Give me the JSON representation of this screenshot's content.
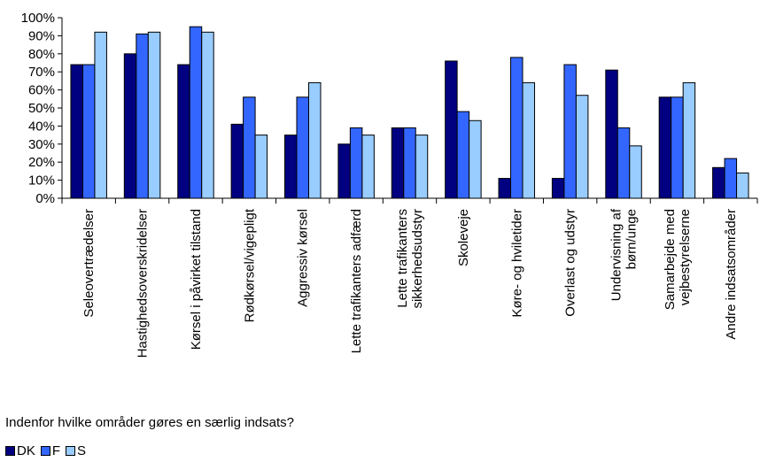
{
  "chart_data": {
    "type": "bar",
    "title": "",
    "xlabel": "Indenfor hvilke områder gøres en særlig indsats?",
    "ylabel": "",
    "ylim": [
      0,
      100
    ],
    "yticks": [
      "0%",
      "10%",
      "20%",
      "30%",
      "40%",
      "50%",
      "60%",
      "70%",
      "80%",
      "90%",
      "100%"
    ],
    "grid": false,
    "legend_position": "bottom-left",
    "categories": [
      [
        "Seleovertrædelser"
      ],
      [
        "Hastighedsoverskridelser"
      ],
      [
        "Kørsel i påvirket tilstand"
      ],
      [
        "Rødkørsel/vigepligt"
      ],
      [
        "Aggressiv kørsel"
      ],
      [
        "Lette trafikanters adfærd"
      ],
      [
        "Lette trafikanters",
        "sikkerhedsudstyr"
      ],
      [
        "Skoleveje"
      ],
      [
        "Køre- og hviletider"
      ],
      [
        "Overlast og udstyr"
      ],
      [
        "Undervisning af",
        "børn/unge"
      ],
      [
        "Samarbejde med",
        "vejbestyrelserne"
      ],
      [
        "Andre indsatsområder"
      ]
    ],
    "series": [
      {
        "name": "DK",
        "color": "#000080",
        "values": [
          74,
          80,
          74,
          41,
          35,
          30,
          39,
          76,
          11,
          11,
          71,
          56,
          17
        ]
      },
      {
        "name": "F",
        "color": "#3366ff",
        "values": [
          74,
          91,
          95,
          56,
          56,
          39,
          39,
          48,
          78,
          74,
          39,
          56,
          22
        ]
      },
      {
        "name": "S",
        "color": "#99ccff",
        "values": [
          92,
          92,
          92,
          35,
          64,
          35,
          35,
          43,
          64,
          57,
          29,
          64,
          14
        ]
      }
    ]
  }
}
